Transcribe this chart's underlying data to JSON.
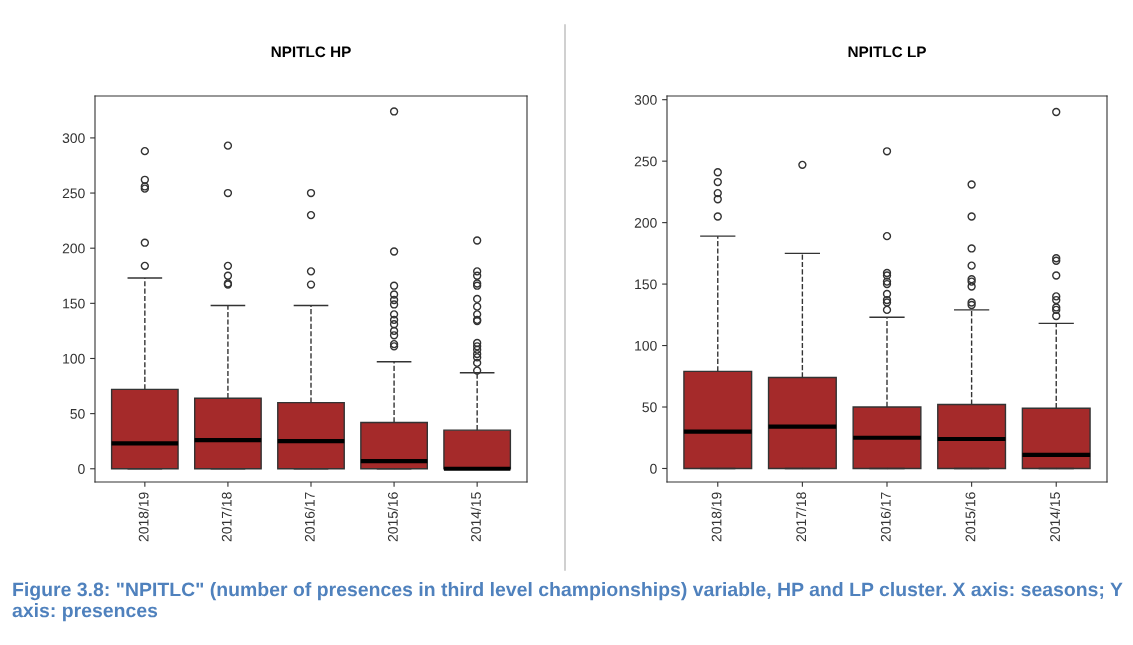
{
  "chart_data": [
    {
      "type": "box",
      "title": "NPITLC HP",
      "categories": [
        "2018/19",
        "2017/18",
        "2016/17",
        "2015/16",
        "2014/15"
      ],
      "color": "#a52a2a",
      "ylim": [
        -12,
        338
      ],
      "yticks": [
        0,
        50,
        100,
        150,
        200,
        250,
        300
      ],
      "grid": false,
      "legend": false,
      "boxes": [
        {
          "low": 0,
          "q1": 0,
          "median": 23,
          "q3": 72,
          "high": 173,
          "outliers": [
            184,
            205,
            254,
            256,
            262,
            288
          ]
        },
        {
          "low": 0,
          "q1": 0,
          "median": 26,
          "q3": 64,
          "high": 148,
          "outliers": [
            167,
            168,
            175,
            184,
            250,
            293
          ]
        },
        {
          "low": 0,
          "q1": 0,
          "median": 25,
          "q3": 60,
          "high": 148,
          "outliers": [
            167,
            179,
            230,
            250
          ]
        },
        {
          "low": 0,
          "q1": 0,
          "median": 7,
          "q3": 42,
          "high": 97,
          "outliers": [
            111,
            113,
            121,
            125,
            131,
            135,
            140,
            149,
            153,
            158,
            166,
            197,
            324
          ]
        },
        {
          "low": 0,
          "q1": 0,
          "median": 0,
          "q3": 35,
          "high": 87,
          "outliers": [
            89,
            96,
            101,
            104,
            108,
            111,
            114,
            134,
            135,
            140,
            147,
            154,
            166,
            168,
            175,
            179,
            207
          ]
        }
      ],
      "annotations": [
        "Figure 3.8: \"NPITLC\" (number of presences in third level championships) variable, HP and LP cluster. X axis: seasons; Y axis: presences"
      ]
    },
    {
      "type": "box",
      "title": "NPITLC LP",
      "categories": [
        "2018/19",
        "2017/18",
        "2016/17",
        "2015/16",
        "2014/15"
      ],
      "color": "#a52a2a",
      "ylim": [
        -11,
        303
      ],
      "yticks": [
        0,
        50,
        100,
        150,
        200,
        250,
        300
      ],
      "grid": false,
      "legend": false,
      "boxes": [
        {
          "low": 0,
          "q1": 0,
          "median": 30,
          "q3": 79,
          "high": 189,
          "outliers": [
            205,
            219,
            224,
            233,
            241
          ]
        },
        {
          "low": 0,
          "q1": 0,
          "median": 34,
          "q3": 74,
          "high": 175,
          "outliers": [
            247
          ]
        },
        {
          "low": 0,
          "q1": 0,
          "median": 25,
          "q3": 50,
          "high": 123,
          "outliers": [
            129,
            135,
            137,
            142,
            150,
            152,
            157,
            159,
            189,
            258
          ]
        },
        {
          "low": 0,
          "q1": 0,
          "median": 24,
          "q3": 52,
          "high": 129,
          "outliers": [
            133,
            135,
            148,
            152,
            154,
            165,
            179,
            205,
            231
          ]
        },
        {
          "low": 0,
          "q1": 0,
          "median": 11,
          "q3": 49,
          "high": 118,
          "outliers": [
            124,
            129,
            131,
            137,
            140,
            157,
            169,
            171,
            290
          ]
        }
      ]
    }
  ]
}
